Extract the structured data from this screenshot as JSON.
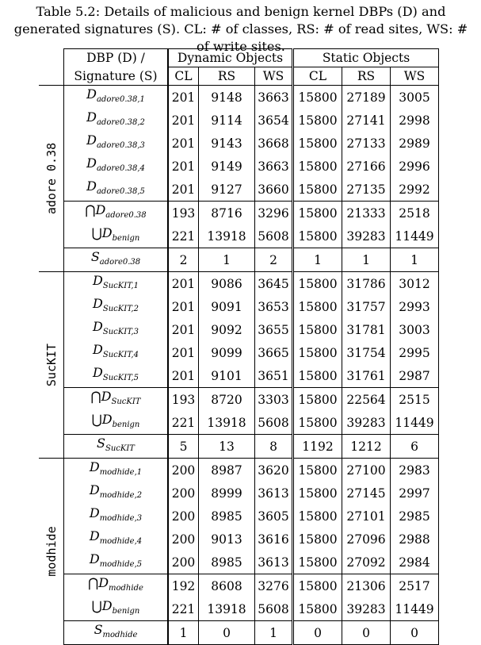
{
  "caption": "Table 5.2: Details of malicious and benign kernel DBPs (D) and generated signatures (S). CL: # of classes, RS: # of read sites, WS: # of write sites.",
  "header": {
    "col1_line1": "DBP (D) /",
    "col1_line2": "Signature (S)",
    "dynamic": "Dynamic Objects",
    "static": "Static Objects",
    "cl": "CL",
    "rs": "RS",
    "ws": "WS"
  },
  "sections": [
    {
      "name": "adore 0.38",
      "rows": [
        {
          "sym": "",
          "base": "D",
          "sub": "adore0.38,1",
          "cells": [
            "201",
            "9148",
            "3663",
            "15800",
            "27189",
            "3005"
          ]
        },
        {
          "sym": "",
          "base": "D",
          "sub": "adore0.38,2",
          "cells": [
            "201",
            "9114",
            "3654",
            "15800",
            "27141",
            "2998"
          ]
        },
        {
          "sym": "",
          "base": "D",
          "sub": "adore0.38,3",
          "cells": [
            "201",
            "9143",
            "3668",
            "15800",
            "27133",
            "2989"
          ]
        },
        {
          "sym": "",
          "base": "D",
          "sub": "adore0.38,4",
          "cells": [
            "201",
            "9149",
            "3663",
            "15800",
            "27166",
            "2996"
          ]
        },
        {
          "sym": "",
          "base": "D",
          "sub": "adore0.38,5",
          "cells": [
            "201",
            "9127",
            "3660",
            "15800",
            "27135",
            "2992"
          ]
        },
        {
          "sym": "⋂",
          "base": "D",
          "sub": "adore0.38",
          "cells": [
            "193",
            "8716",
            "3296",
            "15800",
            "21333",
            "2518"
          ]
        },
        {
          "sym": "⋃",
          "base": "D",
          "sub": "benign",
          "cells": [
            "221",
            "13918",
            "5608",
            "15800",
            "39283",
            "11449"
          ]
        },
        {
          "sym": "",
          "base": "S",
          "sub": "adore0.38",
          "cells": [
            "2",
            "1",
            "2",
            "1",
            "1",
            "1"
          ]
        }
      ]
    },
    {
      "name": "SucKIT",
      "rows": [
        {
          "sym": "",
          "base": "D",
          "sub": "SucKIT,1",
          "cells": [
            "201",
            "9086",
            "3645",
            "15800",
            "31786",
            "3012"
          ]
        },
        {
          "sym": "",
          "base": "D",
          "sub": "SucKIT,2",
          "cells": [
            "201",
            "9091",
            "3653",
            "15800",
            "31757",
            "2993"
          ]
        },
        {
          "sym": "",
          "base": "D",
          "sub": "SucKIT,3",
          "cells": [
            "201",
            "9092",
            "3655",
            "15800",
            "31781",
            "3003"
          ]
        },
        {
          "sym": "",
          "base": "D",
          "sub": "SucKIT,4",
          "cells": [
            "201",
            "9099",
            "3665",
            "15800",
            "31754",
            "2995"
          ]
        },
        {
          "sym": "",
          "base": "D",
          "sub": "SucKIT,5",
          "cells": [
            "201",
            "9101",
            "3651",
            "15800",
            "31761",
            "2987"
          ]
        },
        {
          "sym": "⋂",
          "base": "D",
          "sub": "SucKIT",
          "cells": [
            "193",
            "8720",
            "3303",
            "15800",
            "22564",
            "2515"
          ]
        },
        {
          "sym": "⋃",
          "base": "D",
          "sub": "benign",
          "cells": [
            "221",
            "13918",
            "5608",
            "15800",
            "39283",
            "11449"
          ]
        },
        {
          "sym": "",
          "base": "S",
          "sub": "SucKIT",
          "cells": [
            "5",
            "13",
            "8",
            "1192",
            "1212",
            "6"
          ]
        }
      ]
    },
    {
      "name": "modhide",
      "rows": [
        {
          "sym": "",
          "base": "D",
          "sub": "modhide,1",
          "cells": [
            "200",
            "8987",
            "3620",
            "15800",
            "27100",
            "2983"
          ]
        },
        {
          "sym": "",
          "base": "D",
          "sub": "modhide,2",
          "cells": [
            "200",
            "8999",
            "3613",
            "15800",
            "27145",
            "2997"
          ]
        },
        {
          "sym": "",
          "base": "D",
          "sub": "modhide,3",
          "cells": [
            "200",
            "8985",
            "3605",
            "15800",
            "27101",
            "2985"
          ]
        },
        {
          "sym": "",
          "base": "D",
          "sub": "modhide,4",
          "cells": [
            "200",
            "9013",
            "3616",
            "15800",
            "27096",
            "2988"
          ]
        },
        {
          "sym": "",
          "base": "D",
          "sub": "modhide,5",
          "cells": [
            "200",
            "8985",
            "3613",
            "15800",
            "27092",
            "2984"
          ]
        },
        {
          "sym": "⋂",
          "base": "D",
          "sub": "modhide",
          "cells": [
            "192",
            "8608",
            "3276",
            "15800",
            "21306",
            "2517"
          ]
        },
        {
          "sym": "⋃",
          "base": "D",
          "sub": "benign",
          "cells": [
            "221",
            "13918",
            "5608",
            "15800",
            "39283",
            "11449"
          ]
        },
        {
          "sym": "",
          "base": "S",
          "sub": "modhide",
          "cells": [
            "1",
            "0",
            "1",
            "0",
            "0",
            "0"
          ]
        }
      ]
    }
  ]
}
